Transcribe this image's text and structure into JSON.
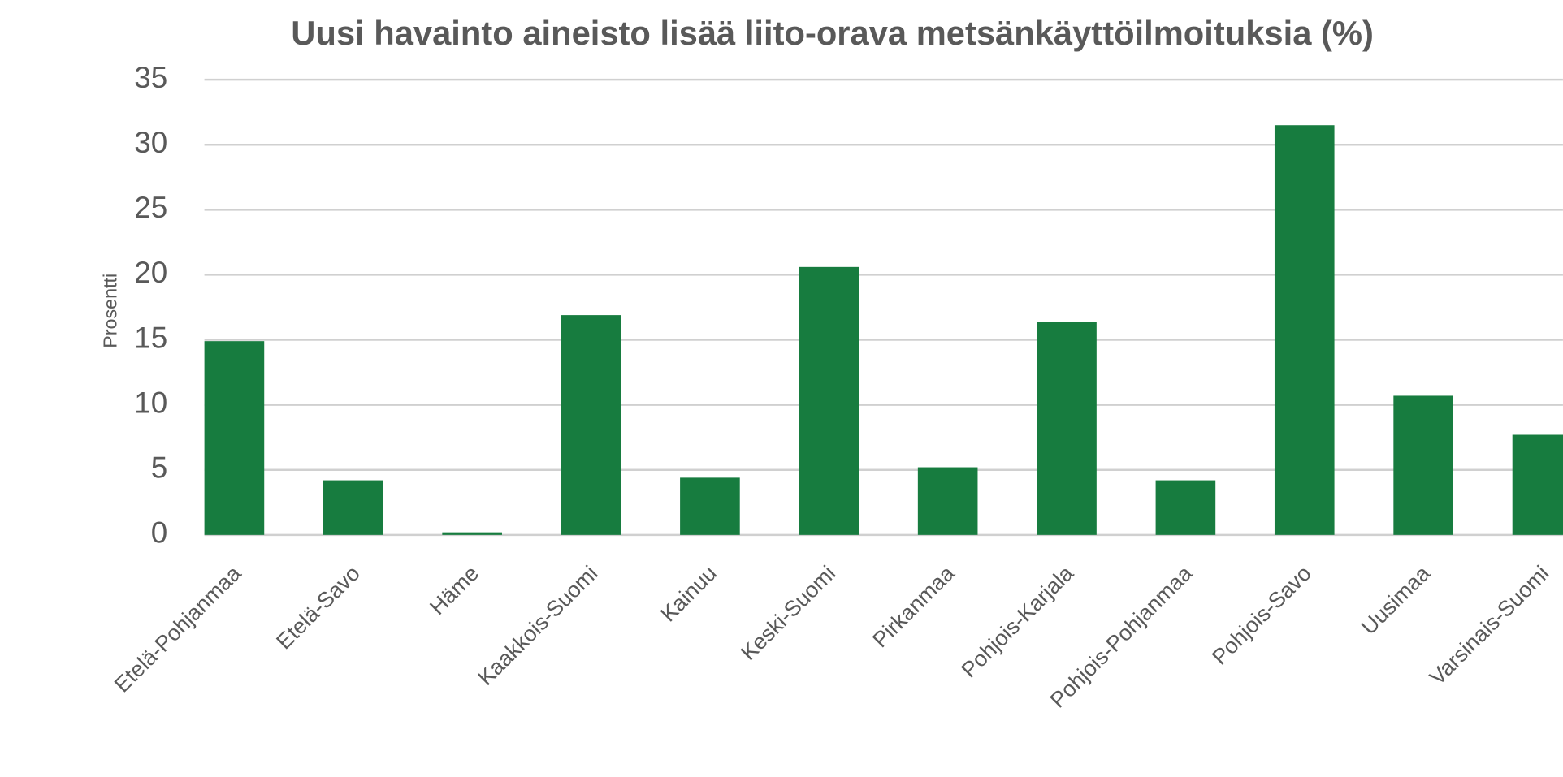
{
  "chart_data": {
    "type": "bar",
    "title": "Uusi havainto aineisto lisää liito-orava metsänkäyttöilmoituksia (%)",
    "y_label": "Prosentti",
    "categories": [
      "Etelä-Pohjanmaa",
      "Etelä-Savo",
      "Häme",
      "Kaakkois-Suomi",
      "Kainuu",
      "Keski-Suomi",
      "Pirkanmaa",
      "Pohjois-Karjala",
      "Pohjois-Pohjanmaa",
      "Pohjois-Savo",
      "Uusimaa",
      "Varsinais-Suomi"
    ],
    "values": [
      14.9,
      4.2,
      0.2,
      16.9,
      4.4,
      20.6,
      5.2,
      16.4,
      4.2,
      31.5,
      10.7,
      7.7
    ],
    "color": "#177c3f",
    "ylim": [
      0,
      35
    ],
    "yticks": [
      0,
      5,
      10,
      15,
      20,
      25,
      30,
      35
    ],
    "grid": true
  }
}
